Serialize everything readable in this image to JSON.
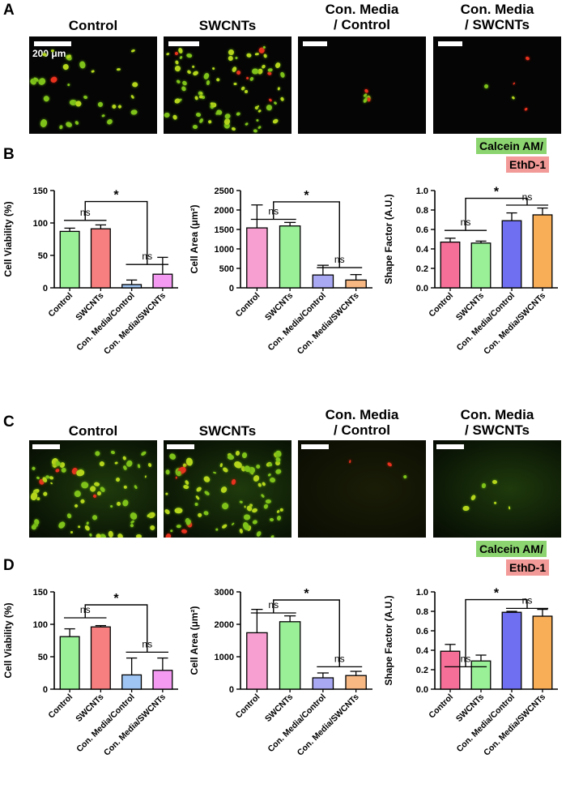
{
  "panels": {
    "A": "A",
    "B": "B",
    "C": "C",
    "D": "D"
  },
  "image_row_A": {
    "titles": [
      "Control",
      "SWCNTs",
      "Con. Media\n/ Control",
      "Con. Media\n/ SWCNTs"
    ],
    "scale_label": "200 μm"
  },
  "image_row_C": {
    "titles": [
      "Control",
      "SWCNTs",
      "Con. Media\n/ Control",
      "Con. Media\n/ SWCNTs"
    ]
  },
  "legend": {
    "calcein": "Calcein AM/",
    "ethd": "EthD-1",
    "calcein_color": "#8bd46f",
    "ethd_color": "#f29a97"
  },
  "chart_data": [
    {
      "id": "B1",
      "type": "bar",
      "categories": [
        "Control",
        "SWCNTs",
        "Con. Media/Control",
        "Con. Media/SWCNTs"
      ],
      "values": [
        87,
        91,
        5,
        21
      ],
      "errors": [
        5,
        6,
        7,
        26
      ],
      "colors": [
        "#99f097",
        "#f87f7f",
        "#9ec5f3",
        "#f59af3"
      ],
      "ylabel": "Cell Viability (%)",
      "ylim": [
        0,
        150
      ],
      "yticks": [
        0,
        50,
        100,
        150
      ],
      "ytick_labels": [
        "0",
        "50",
        "100",
        "150"
      ],
      "annotations": [
        {
          "text": "ns",
          "from": 0,
          "to": 1,
          "y": 104
        },
        {
          "text": "ns",
          "from": 2,
          "to": 3,
          "y": 36
        },
        {
          "text": "*",
          "from": 0.5,
          "to": 2.5,
          "y": 133,
          "bracket": true,
          "left_down": 104,
          "right_down": 36
        }
      ]
    },
    {
      "id": "B2",
      "type": "bar",
      "categories": [
        "Control",
        "SWCNTs",
        "Con. Media/Control",
        "Con. Media/SWCNTs"
      ],
      "values": [
        1540,
        1590,
        330,
        200
      ],
      "errors": [
        590,
        90,
        250,
        140
      ],
      "colors": [
        "#f69fd0",
        "#99f097",
        "#a9a8f3",
        "#f8b883"
      ],
      "ylabel": "Cell Area (μm²)",
      "ylim": [
        0,
        2500
      ],
      "yticks": [
        0,
        500,
        1000,
        1500,
        2000,
        2500
      ],
      "ytick_labels": [
        "0",
        "500",
        "1000",
        "1500",
        "2000",
        "2500"
      ],
      "annotations": [
        {
          "text": "ns",
          "from": 0,
          "to": 1,
          "y": 1760
        },
        {
          "text": "ns",
          "from": 2,
          "to": 3,
          "y": 520
        },
        {
          "text": "*",
          "from": 0.5,
          "to": 2.5,
          "y": 2210,
          "bracket": true,
          "left_down": 1760,
          "right_down": 520
        }
      ]
    },
    {
      "id": "B3",
      "type": "bar",
      "categories": [
        "Control",
        "SWCNTs",
        "Con. Media/Control",
        "Con. Media/SWCNTs"
      ],
      "values": [
        0.47,
        0.46,
        0.69,
        0.75
      ],
      "errors": [
        0.04,
        0.02,
        0.08,
        0.07
      ],
      "colors": [
        "#f56f98",
        "#99f097",
        "#6f6ff2",
        "#f8ad57"
      ],
      "ylabel": "Shape Factor (A.U.)",
      "ylim": [
        0,
        1.0
      ],
      "yticks": [
        0,
        0.2,
        0.4,
        0.6,
        0.8,
        1.0
      ],
      "ytick_labels": [
        "0.0",
        "0.2",
        "0.4",
        "0.6",
        "0.8",
        "1.0"
      ],
      "annotations": [
        {
          "text": "ns",
          "from": 0,
          "to": 1,
          "y": 0.59
        },
        {
          "text": "ns",
          "from": 2,
          "to": 3,
          "y": 0.85
        },
        {
          "text": "*",
          "from": 0.5,
          "to": 2.5,
          "y": 0.92,
          "bracket": true,
          "left_down": 0.59,
          "right_down": 0.85
        }
      ]
    },
    {
      "id": "D1",
      "type": "bar",
      "categories": [
        "Control",
        "SWCNTs",
        "Con. Media/Control",
        "Con. Media/SWCNTs"
      ],
      "values": [
        81,
        96,
        22,
        29
      ],
      "errors": [
        12,
        2,
        26,
        19
      ],
      "colors": [
        "#99f097",
        "#f87f7f",
        "#9ec5f3",
        "#f59af3"
      ],
      "ylabel": "Cell Viability (%)",
      "ylim": [
        0,
        150
      ],
      "yticks": [
        0,
        50,
        100,
        150
      ],
      "ytick_labels": [
        "0",
        "50",
        "100",
        "150"
      ],
      "annotations": [
        {
          "text": "ns",
          "from": 0,
          "to": 1,
          "y": 110
        },
        {
          "text": "ns",
          "from": 2,
          "to": 3,
          "y": 57
        },
        {
          "text": "*",
          "from": 0.5,
          "to": 2.5,
          "y": 130,
          "bracket": true,
          "left_down": 110,
          "right_down": 57
        }
      ]
    },
    {
      "id": "D2",
      "type": "bar",
      "categories": [
        "Control",
        "SWCNTs",
        "Con. Media/Control",
        "Con. Media/SWCNTs"
      ],
      "values": [
        1740,
        2080,
        350,
        420
      ],
      "errors": [
        720,
        180,
        150,
        130
      ],
      "colors": [
        "#f69fd0",
        "#99f097",
        "#a9a8f3",
        "#f8b883"
      ],
      "ylabel": "Cell Area (μm²)",
      "ylim": [
        0,
        3000
      ],
      "yticks": [
        0,
        1000,
        2000,
        3000
      ],
      "ytick_labels": [
        "0",
        "1000",
        "2000",
        "3000"
      ],
      "annotations": [
        {
          "text": "ns",
          "from": 0,
          "to": 1,
          "y": 2350
        },
        {
          "text": "ns",
          "from": 2,
          "to": 3,
          "y": 690
        },
        {
          "text": "*",
          "from": 0.5,
          "to": 2.5,
          "y": 2750,
          "bracket": true,
          "left_down": 2350,
          "right_down": 690
        }
      ]
    },
    {
      "id": "D3",
      "type": "bar",
      "categories": [
        "Control",
        "SWCNTs",
        "Con. Media/Control",
        "Con. Media/SWCNTs"
      ],
      "values": [
        0.39,
        0.29,
        0.79,
        0.75
      ],
      "errors": [
        0.07,
        0.06,
        0.01,
        0.07
      ],
      "colors": [
        "#f56f98",
        "#99f097",
        "#6f6ff2",
        "#f8ad57"
      ],
      "ylabel": "Shape Factor (A.U.)",
      "ylim": [
        0,
        1.0
      ],
      "yticks": [
        0,
        0.2,
        0.4,
        0.6,
        0.8,
        1.0
      ],
      "ytick_labels": [
        "0.0",
        "0.2",
        "0.4",
        "0.6",
        "0.8",
        "1.0"
      ],
      "annotations": [
        {
          "text": "ns",
          "from": 0,
          "to": 1,
          "y": 0.23
        },
        {
          "text": "ns",
          "from": 2,
          "to": 3,
          "y": 0.83
        },
        {
          "text": "*",
          "from": 0.5,
          "to": 2.5,
          "y": 0.92,
          "bracket": true,
          "left_down": 0.23,
          "right_down": 0.83
        }
      ]
    }
  ]
}
